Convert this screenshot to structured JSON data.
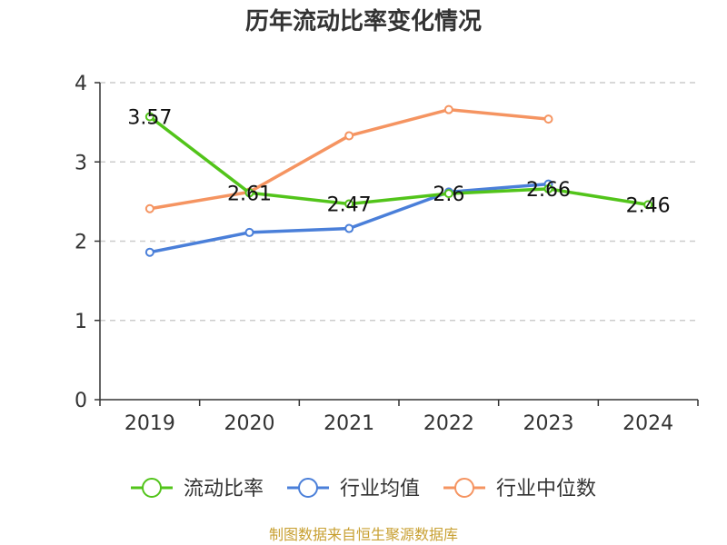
{
  "chart_data": {
    "type": "line",
    "title": "历年流动比率变化情况",
    "xlabel": "",
    "ylabel": "",
    "categories": [
      "2019",
      "2020",
      "2021",
      "2022",
      "2023",
      "2024"
    ],
    "ylim": [
      0,
      4
    ],
    "yticks": [
      0,
      1,
      2,
      3,
      4
    ],
    "grid": true,
    "legend_position": "bottom",
    "series": [
      {
        "name": "流动比率",
        "color": "#52c41a",
        "values": [
          3.57,
          2.61,
          2.47,
          2.6,
          2.66,
          2.46
        ],
        "labels": [
          "3.57",
          "2.61",
          "2.47",
          "2.6",
          "2.66",
          "2.46"
        ]
      },
      {
        "name": "行业均值",
        "color": "#4a7fd9",
        "values": [
          1.86,
          2.11,
          2.16,
          2.62,
          2.72,
          null
        ],
        "labels": []
      },
      {
        "name": "行业中位数",
        "color": "#f59461",
        "values": [
          2.41,
          2.62,
          3.33,
          3.66,
          3.54,
          null
        ],
        "labels": []
      }
    ]
  },
  "source_text": "制图数据来自恒生聚源数据库"
}
